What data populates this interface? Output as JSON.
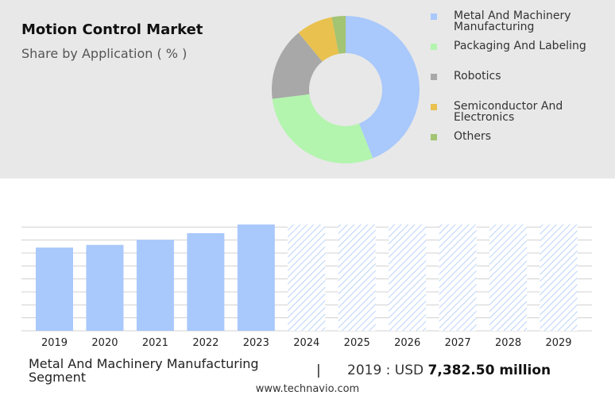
{
  "header": {
    "title": "Motion Control Market",
    "subtitle": "Share by Application ( % )"
  },
  "legend": [
    {
      "label": "Metal And Machinery Manufacturing",
      "color": "#a9c8fb"
    },
    {
      "label": "Packaging And Labeling",
      "color": "#b3f5ae"
    },
    {
      "label": "Robotics",
      "color": "#a8a8a8"
    },
    {
      "label": "Semiconductor And Electronics",
      "color": "#e8c14f"
    },
    {
      "label": "Others",
      "color": "#a3c472"
    }
  ],
  "footer": {
    "segment": "Metal And Machinery Manufacturing Segment",
    "divider": "|",
    "value_prefix": "2019 : USD",
    "value_bold": "7,382.50 million",
    "site": "www.technavio.com"
  },
  "chart_data": [
    {
      "type": "pie",
      "style": "donut",
      "categories": [
        "Metal And Machinery Manufacturing",
        "Packaging And Labeling",
        "Robotics",
        "Semiconductor And Electronics",
        "Others"
      ],
      "values": [
        44,
        29,
        16,
        8,
        3
      ],
      "colors": [
        "#a9c8fb",
        "#b3f5ae",
        "#a8a8a8",
        "#e8c14f",
        "#a3c472"
      ],
      "legend_position": "right"
    },
    {
      "type": "bar",
      "categories": [
        "2019",
        "2020",
        "2021",
        "2022",
        "2023",
        "2024",
        "2025",
        "2026",
        "2027",
        "2028",
        "2029"
      ],
      "values": [
        7382.5,
        7620,
        8070,
        8660,
        9430,
        9430,
        9430,
        9430,
        9430,
        9430,
        9430
      ],
      "forecast_from": "2024",
      "ylim": [
        0,
        9430
      ],
      "grid": true,
      "colors": {
        "actual": "#a9c8fb",
        "forecast_hatch": "#a9c8fb"
      }
    }
  ]
}
